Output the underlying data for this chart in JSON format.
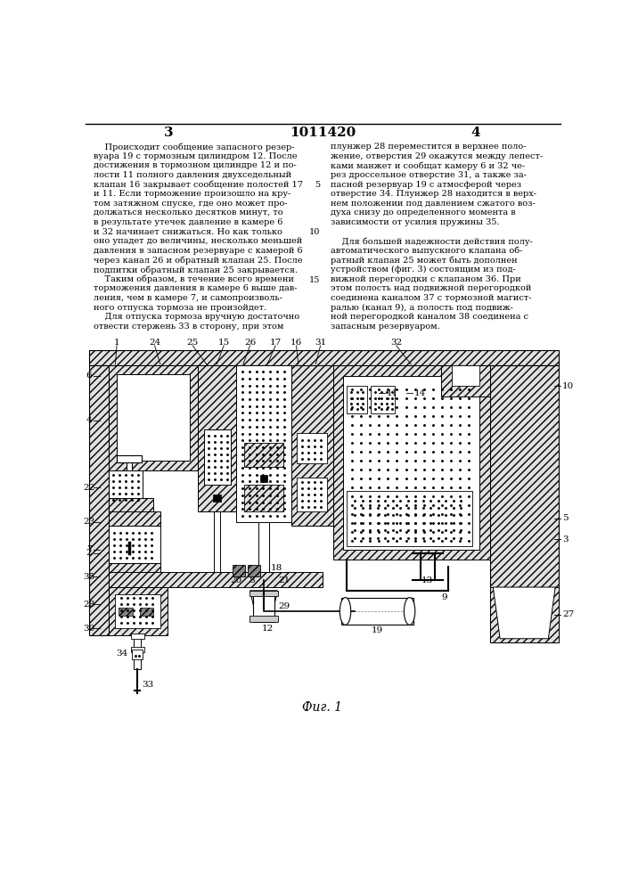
{
  "page_number_left": "3",
  "patent_number": "1011420",
  "page_number_right": "4",
  "fig_caption": "Фиг. 1",
  "background_color": "#ffffff",
  "text_color": "#000000",
  "left_column_text": [
    "    Происходит сообщение запасного резер-",
    "вуара 19 с тормозным цилиндром 12. После",
    "достижения в тормозном цилиндре 12 и по-",
    "лости 11 полного давления двухседельный",
    "клапан 16 закрывает сообщение полостей 17",
    "и 11. Если торможение произошло на кру-",
    "том затяжном спуске, где оно может про-",
    "должаться несколько десятков минут, то",
    "в результате утечек давление в камере 6",
    "и 32 начинает снижаться. Но как только",
    "оно упадет до величины, несколько меньшей",
    "давления в запасном резервуаре с камерой 6",
    "через канал 26 и обратный клапан 25. После",
    "подпитки обратный клапан 25 закрывается.",
    "    Таким образом, в течение всего времени",
    "торможения давления в камере 6 выше дав-",
    "ления, чем в камере 7, и самопроизволь-",
    "ного отпуска тормоза не произойдет.",
    "    Для отпуска тормоза вручную достаточно",
    "отвести стержень 33 в сторону, при этом"
  ],
  "right_column_text": [
    "плунжер 28 переместится в верхнее поло-",
    "жение, отверстия 29 окажутся между лепест-",
    "ками манжет и сообщат камеру 6 и 32 че-",
    "рез дроссельное отверстие 31, а также за-",
    "пасной резервуар 19 с атмосферой через",
    "отверстие 34. Плунжер 28 находится в верх-",
    "нем положении под давлением сжатого воз-",
    "духа снизу до определенного момента в",
    "зависимости от усилия пружины 35.",
    "",
    "    Для большей надежности действия полу-",
    "автоматического выпускного клапана об-",
    "ратный клапан 25 может быть дополнен",
    "устройством (фиг. 3) состоящим из под-",
    "вижной перегородки с клапаном 36. При",
    "этом полость над подвижной перегородкой",
    "соединена каналом 37 с тормозной магист-",
    "ралью (канал 9), а полость под подвиж-",
    "ной перегородкой каналом 38 соединена с",
    "запасным резервуаром."
  ]
}
